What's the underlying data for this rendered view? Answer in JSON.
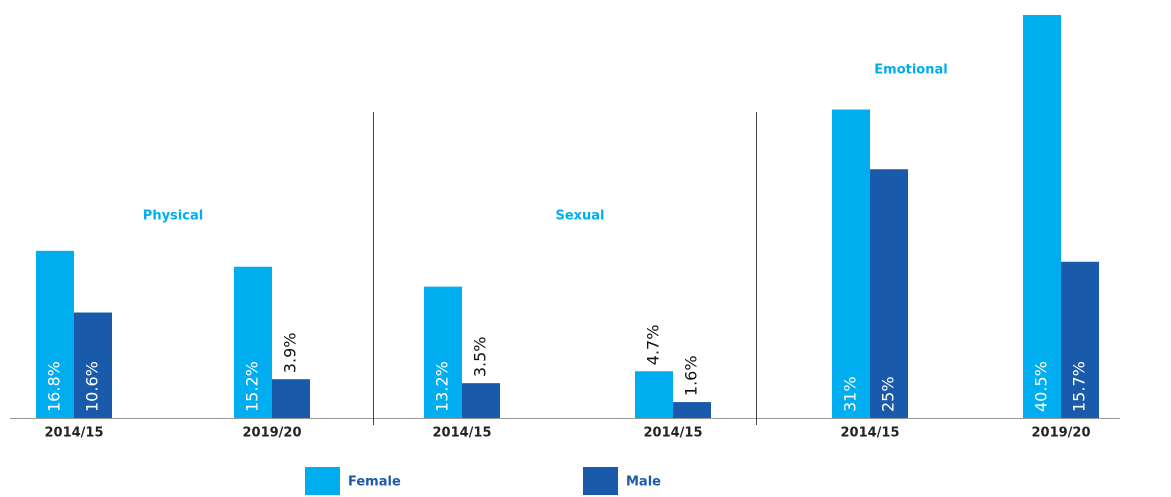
{
  "chart_data": {
    "type": "bar",
    "annotations": [
      "Physical",
      "Sexual",
      "Emotional"
    ],
    "categories": [
      "2014/15",
      "2019/20",
      "2014/15",
      "2014/15",
      "2014/15",
      "2019/20"
    ],
    "series": [
      {
        "name": "Female",
        "color": "#00aeef",
        "values": [
          16.8,
          15.2,
          13.2,
          4.7,
          31,
          40.5
        ],
        "value_labels": [
          "16.8%",
          "15.2%",
          "13.2%",
          "4.7%",
          "31%",
          "40.5%"
        ]
      },
      {
        "name": "Male",
        "color": "#1a5aaa",
        "values": [
          10.6,
          3.9,
          3.5,
          1.6,
          25,
          15.7
        ],
        "value_labels": [
          "10.6%",
          "3.9%",
          "3.5%",
          "1.6%",
          "25%",
          "15.7%"
        ]
      }
    ],
    "grid": false
  }
}
